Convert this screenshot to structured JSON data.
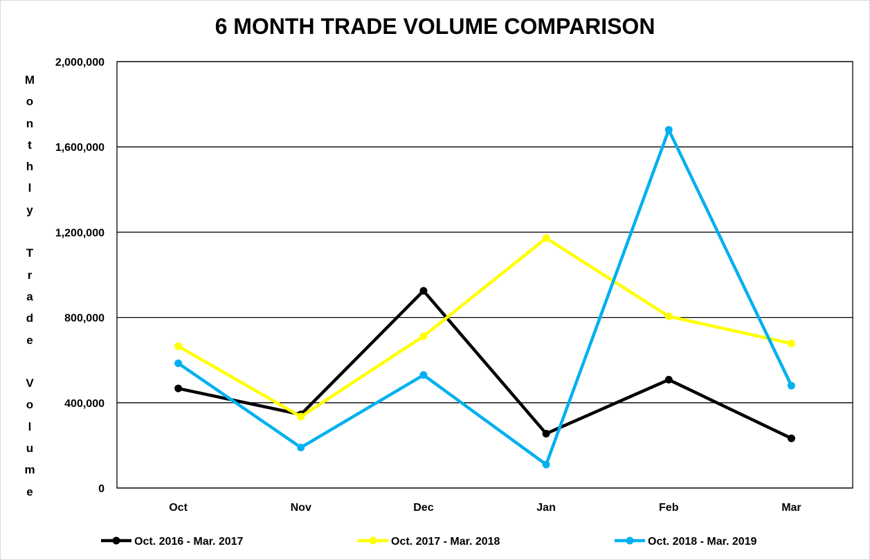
{
  "chart_data": {
    "type": "line",
    "title": "6 MONTH TRADE VOLUME COMPARISON",
    "xlabel": "",
    "ylabel": "Monthly Trade Volume",
    "categories": [
      "Oct",
      "Nov",
      "Dec",
      "Jan",
      "Feb",
      "Mar"
    ],
    "ylim": [
      0,
      2000000
    ],
    "yticks": [
      0,
      400000,
      800000,
      1200000,
      1600000,
      2000000
    ],
    "ytick_labels": [
      "0",
      "400,000",
      "800,000",
      "1,200,000",
      "1,600,000",
      "2,000,000"
    ],
    "grid": true,
    "legend": "bottom",
    "series": [
      {
        "name": "Oct. 2016 - Mar. 2017",
        "color": "#000000",
        "values": [
          467000,
          345000,
          925000,
          255000,
          508000,
          233000
        ]
      },
      {
        "name": "Oct. 2017 - Mar. 2018",
        "color": "#ffff00",
        "values": [
          665000,
          335000,
          712000,
          1172000,
          805000,
          678000
        ]
      },
      {
        "name": "Oct. 2018 - Mar. 2019",
        "color": "#00b0f0",
        "values": [
          585000,
          190000,
          530000,
          110000,
          1680000,
          480000
        ]
      }
    ]
  }
}
